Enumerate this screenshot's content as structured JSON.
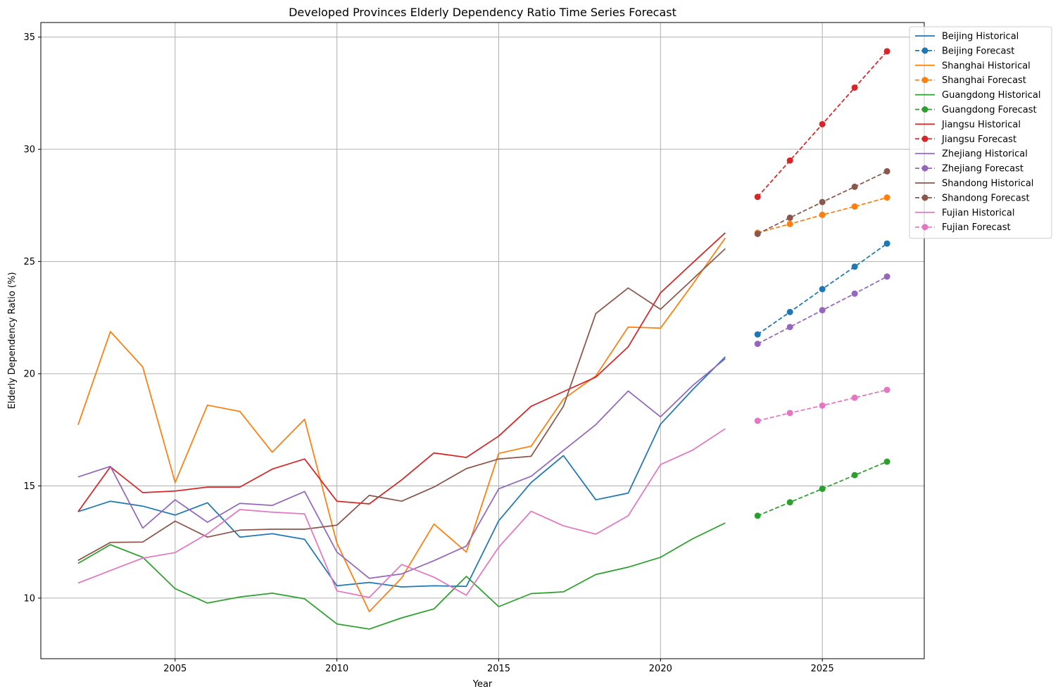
{
  "chart_data": {
    "type": "line",
    "title": "Developed Provinces Elderly Dependency Ratio Time Series Forecast",
    "xlabel": "Year",
    "ylabel": "Elderly Dependency Ratio (%)",
    "xlim": [
      2000.85,
      2028.15
    ],
    "ylim": [
      7.3,
      35.65
    ],
    "x_ticks": [
      2005,
      2010,
      2015,
      2020,
      2025
    ],
    "y_ticks": [
      10,
      15,
      20,
      25,
      30,
      35
    ],
    "grid": true,
    "legend_position": "upper-right-outside",
    "historical_x": [
      2002,
      2003,
      2004,
      2005,
      2006,
      2007,
      2008,
      2009,
      2010,
      2011,
      2012,
      2013,
      2014,
      2015,
      2016,
      2017,
      2018,
      2019,
      2020,
      2021,
      2022
    ],
    "forecast_x": [
      2023,
      2024,
      2025,
      2026,
      2027
    ],
    "series": [
      {
        "province": "Beijing",
        "historical_label": "Beijing Historical",
        "forecast_label": "Beijing Forecast",
        "color": "#1f77b4",
        "historical": [
          13.85,
          14.32,
          14.1,
          13.7,
          14.25,
          12.72,
          12.87,
          12.62,
          10.55,
          10.7,
          10.5,
          10.55,
          10.52,
          13.45,
          15.15,
          16.35,
          14.38,
          14.68,
          17.75,
          19.3,
          20.75
        ],
        "forecast": [
          21.75,
          22.75,
          23.77,
          24.77,
          25.8
        ]
      },
      {
        "province": "Shanghai",
        "historical_label": "Shanghai Historical",
        "forecast_label": "Shanghai Forecast",
        "color": "#ff7f0e",
        "historical": [
          17.72,
          21.88,
          20.3,
          15.15,
          18.6,
          18.32,
          16.5,
          17.97,
          12.45,
          9.4,
          10.9,
          13.3,
          12.05,
          16.45,
          16.77,
          18.87,
          19.9,
          22.08,
          22.03,
          24.0,
          26.05
        ],
        "forecast": [
          26.28,
          26.67,
          27.08,
          27.45,
          27.85
        ]
      },
      {
        "province": "Guangdong",
        "historical_label": "Guangdong Historical",
        "forecast_label": "Guangdong Forecast",
        "color": "#2ca02c",
        "historical": [
          11.55,
          12.38,
          11.82,
          10.42,
          9.78,
          10.05,
          10.22,
          9.97,
          8.85,
          8.62,
          9.12,
          9.52,
          10.97,
          9.62,
          10.2,
          10.28,
          11.05,
          11.38,
          11.82,
          12.65,
          13.35
        ],
        "forecast": [
          13.67,
          14.27,
          14.87,
          15.48,
          16.08
        ]
      },
      {
        "province": "Jiangsu",
        "historical_label": "Jiangsu Historical",
        "forecast_label": "Jiangsu Forecast",
        "color": "#d62728",
        "historical": [
          13.85,
          15.85,
          14.7,
          14.77,
          14.95,
          14.95,
          15.75,
          16.2,
          14.32,
          14.2,
          15.27,
          16.47,
          16.27,
          17.22,
          18.55,
          19.2,
          19.85,
          21.2,
          23.6,
          24.95,
          26.28
        ],
        "forecast": [
          27.88,
          29.5,
          31.12,
          32.75,
          34.37
        ]
      },
      {
        "province": "Zhejiang",
        "historical_label": "Zhejiang Historical",
        "forecast_label": "Zhejiang Forecast",
        "color": "#9467bd",
        "historical": [
          15.4,
          15.87,
          13.12,
          14.38,
          13.38,
          14.22,
          14.13,
          14.75,
          12.05,
          10.88,
          11.08,
          11.67,
          12.32,
          14.87,
          15.43,
          16.58,
          17.73,
          19.23,
          18.08,
          19.48,
          20.67
        ],
        "forecast": [
          21.33,
          22.08,
          22.83,
          23.57,
          24.33
        ]
      },
      {
        "province": "Shandong",
        "historical_label": "Shandong Historical",
        "forecast_label": "Shandong Forecast",
        "color": "#8c564b",
        "historical": [
          11.68,
          12.48,
          12.5,
          13.43,
          12.72,
          13.03,
          13.07,
          13.07,
          13.25,
          14.58,
          14.32,
          14.95,
          15.77,
          16.2,
          16.32,
          18.55,
          22.68,
          23.82,
          22.87,
          24.22,
          25.57
        ],
        "forecast": [
          26.23,
          26.95,
          27.65,
          28.33,
          29.02
        ]
      },
      {
        "province": "Fujian",
        "historical_label": "Fujian Historical",
        "forecast_label": "Fujian Forecast",
        "color": "#e377c2",
        "historical": [
          10.67,
          11.23,
          11.78,
          12.03,
          12.87,
          13.95,
          13.83,
          13.75,
          10.32,
          10.03,
          11.5,
          10.93,
          10.13,
          12.27,
          13.87,
          13.22,
          12.85,
          13.67,
          15.95,
          16.6,
          17.55
        ],
        "forecast": [
          17.9,
          18.25,
          18.58,
          18.93,
          19.28
        ]
      }
    ]
  }
}
